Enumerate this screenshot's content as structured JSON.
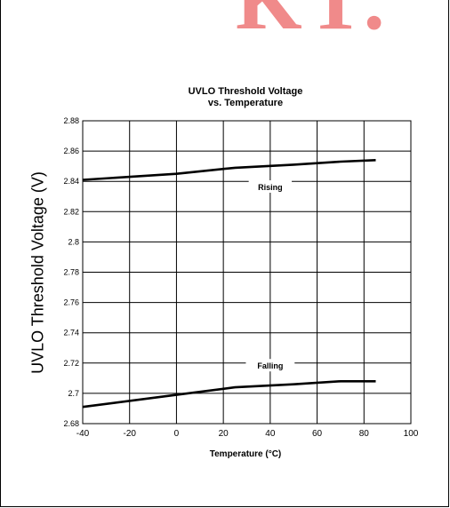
{
  "watermark": {
    "text": "KT."
  },
  "chart_data": {
    "type": "line",
    "title": [
      "UVLO Threshold Voltage",
      "vs. Temperature"
    ],
    "xlabel": "Temperature (°C)",
    "ylabel": "UVLO Threshold Voltage (V)",
    "xlim": [
      -40,
      100
    ],
    "ylim": [
      2.68,
      2.88
    ],
    "xticks": [
      -40,
      -20,
      0,
      20,
      40,
      60,
      80,
      100
    ],
    "xtick_labels": [
      "-40",
      "-20",
      "0",
      "20",
      "40",
      "60",
      "80",
      "100"
    ],
    "yticks": [
      2.68,
      2.7,
      2.72,
      2.74,
      2.76,
      2.78,
      2.8,
      2.82,
      2.84,
      2.86,
      2.88
    ],
    "ytick_labels": [
      "2.68",
      "2.7",
      "2.72",
      "2.74",
      "2.76",
      "2.78",
      "2.8",
      "2.82",
      "2.84",
      "2.86",
      "2.88"
    ],
    "grid": true,
    "series": [
      {
        "name": "Rising",
        "color": "#000000",
        "x": [
          -40,
          0,
          25,
          50,
          70,
          85
        ],
        "y": [
          2.841,
          2.845,
          2.849,
          2.851,
          2.853,
          2.854
        ],
        "label_at": {
          "x": 40,
          "y": 2.836
        }
      },
      {
        "name": "Falling",
        "color": "#000000",
        "x": [
          -40,
          0,
          25,
          50,
          70,
          85
        ],
        "y": [
          2.691,
          2.699,
          2.704,
          2.706,
          2.708,
          2.708
        ],
        "label_at": {
          "x": 40,
          "y": 2.718
        }
      }
    ]
  }
}
